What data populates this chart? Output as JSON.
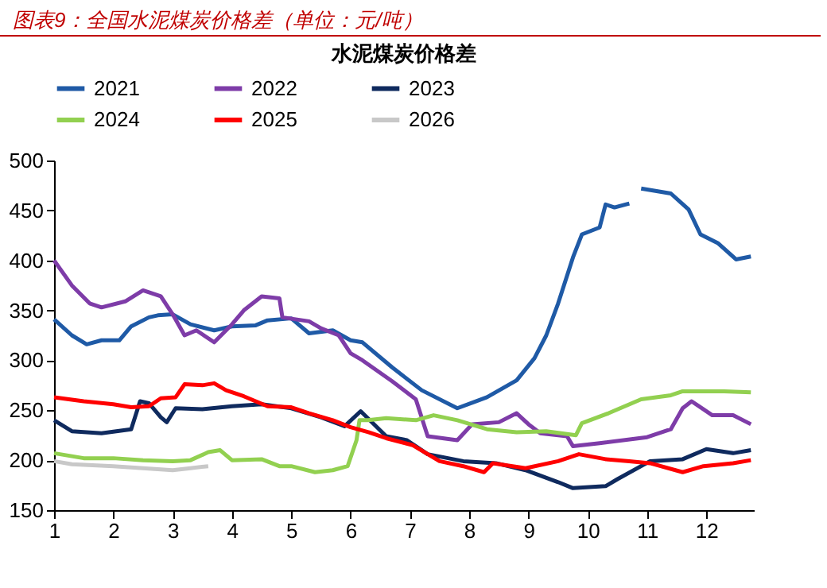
{
  "chart_data": {
    "type": "line",
    "title": "图表9：全国水泥煤炭价格差（单位：元/吨）",
    "subtitle": "水泥煤炭价格差",
    "xlim": [
      1,
      12.8
    ],
    "xticks": [
      1,
      2,
      3,
      4,
      5,
      6,
      7,
      8,
      9,
      10,
      11,
      12
    ],
    "ylim": [
      150,
      500
    ],
    "yticks": [
      150,
      200,
      250,
      300,
      350,
      400,
      450,
      500
    ],
    "grid": false,
    "legend": "top",
    "marker": "none",
    "line_style": "solid",
    "series": [
      {
        "name": "2021",
        "color": "#1f5aa6",
        "x": [
          1,
          1.3,
          1.55,
          1.8,
          2.1,
          2.3,
          2.6,
          2.75,
          3,
          3.3,
          3.7,
          4,
          4.4,
          4.6,
          5,
          5.3,
          5.7,
          6,
          6.2,
          6.7,
          7.2,
          7.8,
          8.3,
          8.8,
          9.1,
          9.3,
          9.5,
          9.75,
          9.9,
          10.2,
          10.3,
          10.45,
          10.7,
          10.8,
          10.9,
          11.4,
          11.7,
          11.9,
          12.2,
          12.5,
          12.75
        ],
        "values": [
          341,
          325,
          316,
          320,
          320,
          334,
          343,
          345,
          346,
          336,
          330,
          334,
          335,
          340,
          342,
          327,
          330,
          320,
          318,
          293,
          270,
          252,
          263,
          280,
          302,
          325,
          357,
          403,
          426,
          433,
          456,
          453,
          457,
          null,
          472,
          467,
          451,
          426,
          417,
          401,
          404
        ]
      },
      {
        "name": "2022",
        "color": "#7e3ca8",
        "x": [
          1,
          1.3,
          1.6,
          1.8,
          2.2,
          2.5,
          2.8,
          3,
          3.2,
          3.4,
          3.7,
          4,
          4.2,
          4.5,
          4.8,
          4.85,
          5.3,
          5.5,
          5.8,
          6,
          6.2,
          6.7,
          7.1,
          7.3,
          7.8,
          8.05,
          8.5,
          8.8,
          9,
          9.2,
          9.65,
          9.75,
          10.2,
          11,
          11.4,
          11.6,
          11.75,
          12.1,
          12.45,
          12.75
        ],
        "values": [
          400,
          375,
          357,
          353,
          359,
          370,
          364,
          346,
          325,
          330,
          318,
          336,
          350,
          364,
          362,
          343,
          339,
          332,
          325,
          307,
          300,
          279,
          261,
          224,
          220,
          236,
          238,
          247,
          236,
          227,
          224,
          214,
          217,
          223,
          231,
          252,
          259,
          245,
          245,
          236
        ]
      },
      {
        "name": "2023",
        "color": "#0f2a5e",
        "x": [
          1,
          1.3,
          1.8,
          2.3,
          2.45,
          2.6,
          2.8,
          2.9,
          3.05,
          3.5,
          4,
          4.5,
          5,
          5.5,
          5.9,
          6.17,
          6.6,
          6.95,
          7.3,
          7.9,
          8.45,
          8.95,
          9.5,
          9.75,
          10.3,
          10.5,
          11.05,
          11.6,
          12,
          12.45,
          12.75
        ],
        "values": [
          240,
          229,
          227,
          231,
          259,
          257,
          243,
          238,
          252,
          251,
          254,
          256,
          252,
          243,
          234,
          249,
          224,
          220,
          206,
          199,
          197,
          190,
          178,
          172,
          174,
          181,
          199,
          201,
          211,
          207,
          210
        ]
      },
      {
        "name": "2024",
        "color": "#92d050",
        "x": [
          1,
          1.5,
          2,
          2.5,
          3,
          3.3,
          3.6,
          3.8,
          4,
          4.5,
          4.8,
          5,
          5.4,
          5.7,
          5.95,
          6.1,
          6.15,
          6.3,
          6.6,
          7.1,
          7.4,
          7.8,
          8.3,
          8.8,
          9.3,
          9.8,
          9.9,
          10.35,
          10.9,
          11.4,
          11.6,
          12.3,
          12.75
        ],
        "values": [
          207,
          202,
          202,
          200,
          199,
          200,
          208,
          210,
          200,
          201,
          194,
          194,
          188,
          190,
          194,
          220,
          240,
          240,
          242,
          240,
          245,
          240,
          231,
          228,
          229,
          225,
          237,
          247,
          261,
          265,
          269,
          269,
          268
        ]
      },
      {
        "name": "2025",
        "color": "#ff0000",
        "x": [
          1,
          1.5,
          2,
          2.3,
          2.6,
          2.8,
          3.05,
          3.2,
          3.5,
          3.7,
          3.9,
          4.2,
          4.6,
          5,
          5.3,
          5.7,
          6,
          6.3,
          6.6,
          7.05,
          7.5,
          7.9,
          8.25,
          8.4,
          8.95,
          9.5,
          9.85,
          10.3,
          10.7,
          11.05,
          11.6,
          11.95,
          12.45,
          12.75
        ],
        "values": [
          263,
          259,
          256,
          253,
          254,
          262,
          263,
          276,
          275,
          277,
          270,
          264,
          254,
          253,
          247,
          240,
          233,
          228,
          222,
          215,
          199,
          194,
          188,
          197,
          192,
          199,
          206,
          201,
          199,
          197,
          188,
          194,
          197,
          200
        ]
      },
      {
        "name": "2026",
        "color": "#c8c8c8",
        "x": [
          1,
          1.3,
          2,
          2.5,
          3,
          3.3,
          3.6
        ],
        "values": [
          199,
          196,
          194,
          192,
          190,
          192,
          194
        ]
      }
    ]
  }
}
